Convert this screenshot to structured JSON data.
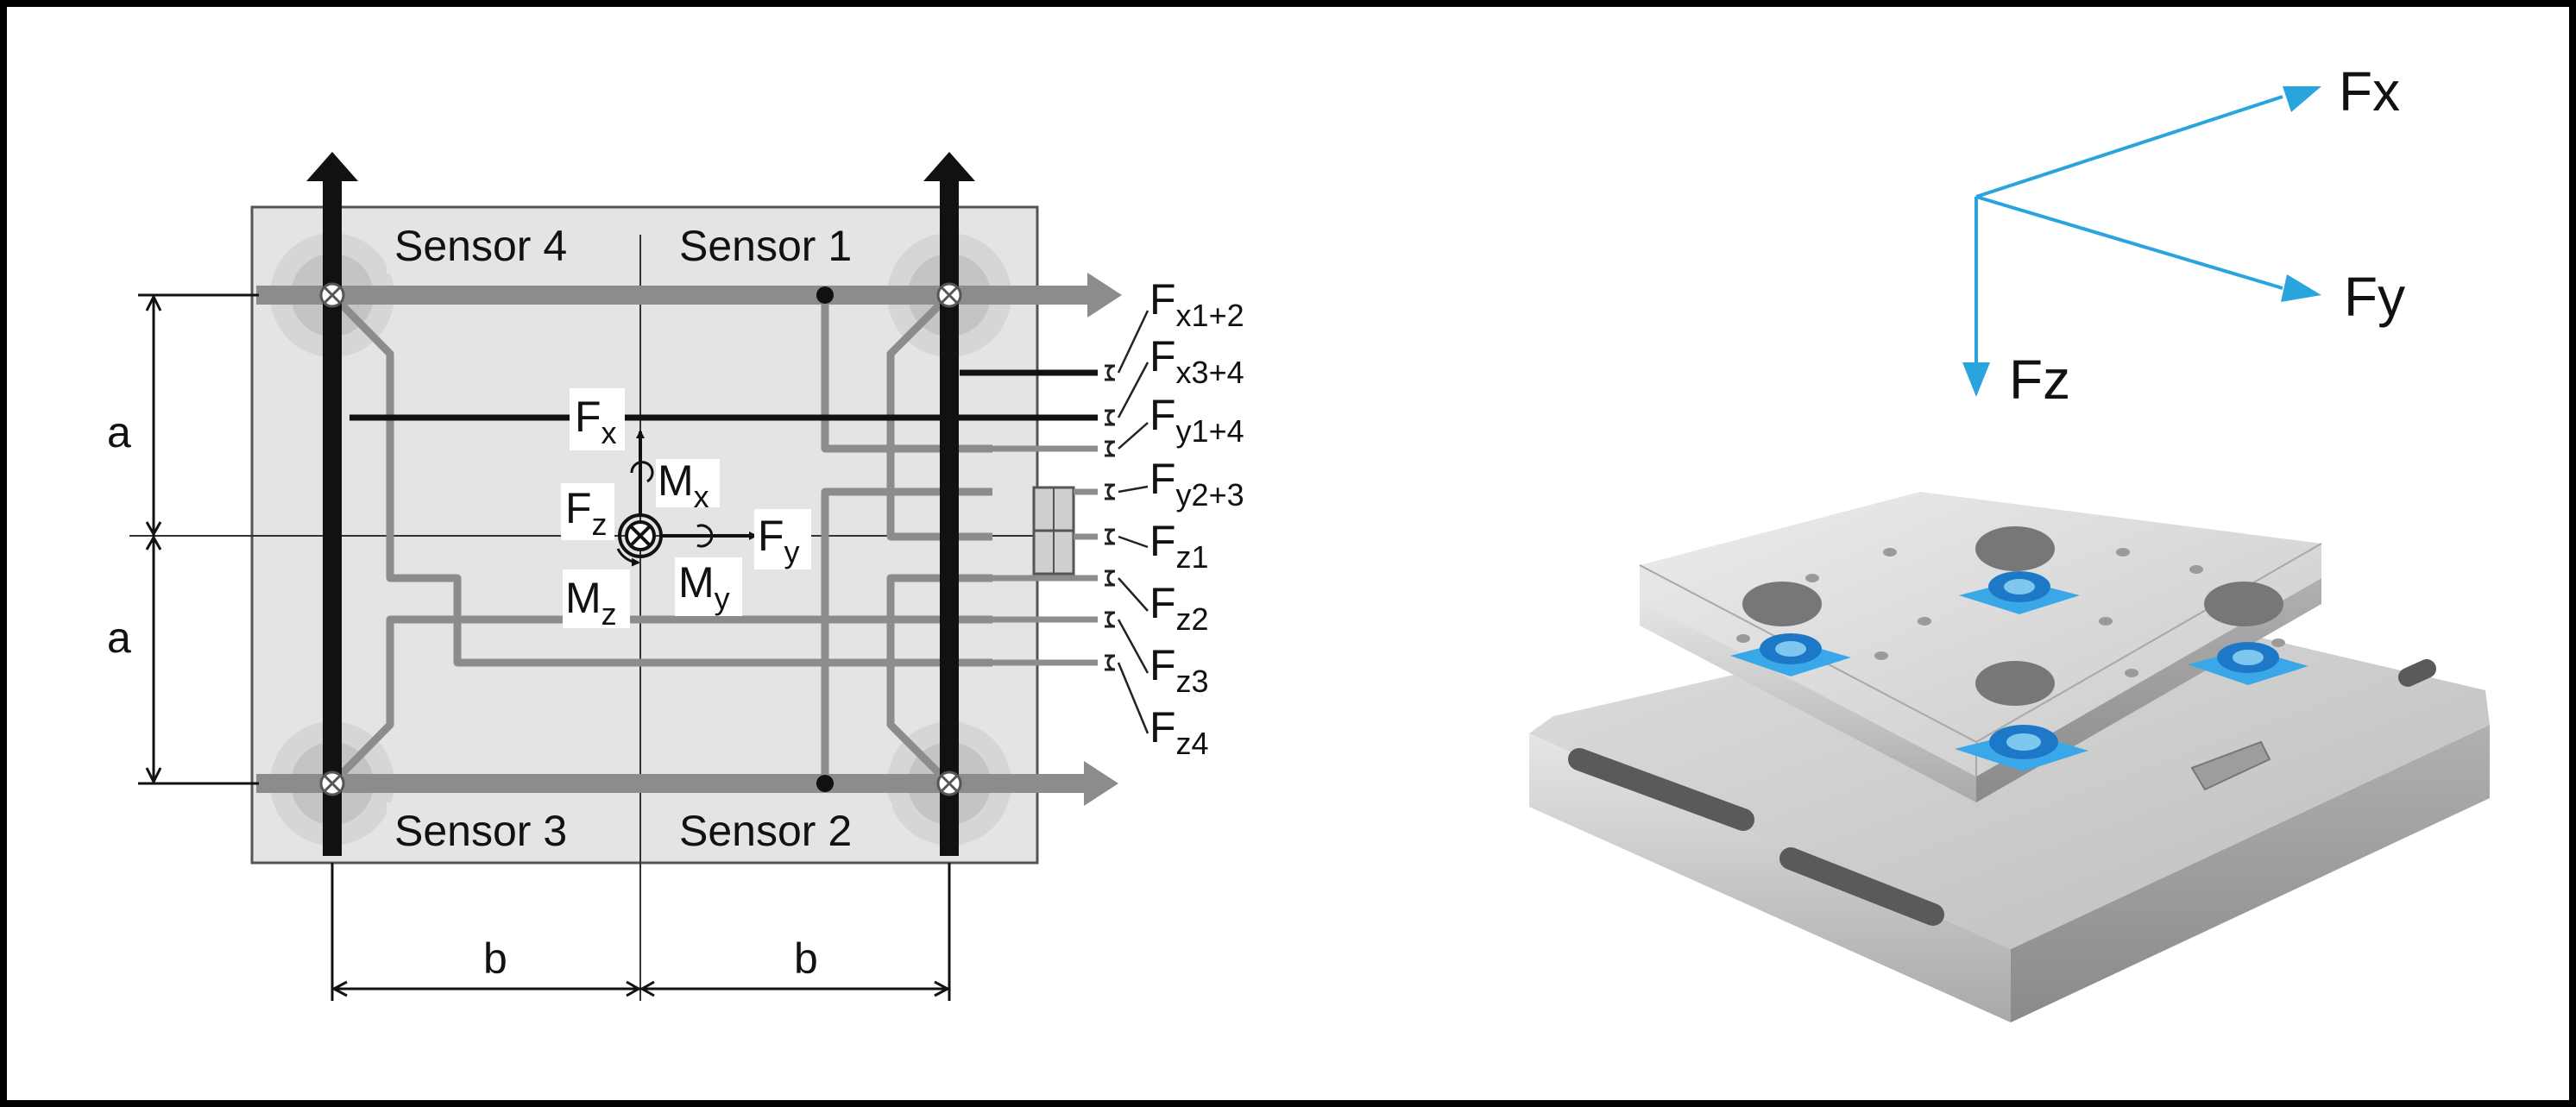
{
  "sensors": {
    "s1": "Sensor 1",
    "s2": "Sensor 2",
    "s3": "Sensor 3",
    "s4": "Sensor 4"
  },
  "dimensions": {
    "a": "a",
    "b": "b"
  },
  "center": {
    "Fx": {
      "main": "F",
      "sub": "x"
    },
    "Fy": {
      "main": "F",
      "sub": "y"
    },
    "Fz": {
      "main": "F",
      "sub": "z"
    },
    "Mx": {
      "main": "M",
      "sub": "x"
    },
    "My": {
      "main": "M",
      "sub": "y"
    },
    "Mz": {
      "main": "M",
      "sub": "z"
    }
  },
  "outputs": [
    {
      "main": "F",
      "sub": "x1+2"
    },
    {
      "main": "F",
      "sub": "x3+4"
    },
    {
      "main": "F",
      "sub": "y1+4"
    },
    {
      "main": "F",
      "sub": "y2+3"
    },
    {
      "main": "F",
      "sub": "z1"
    },
    {
      "main": "F",
      "sub": "z2"
    },
    {
      "main": "F",
      "sub": "z3"
    },
    {
      "main": "F",
      "sub": "z4"
    }
  ],
  "axes3d": {
    "x": "Fx",
    "y": "Fy",
    "z": "Fz"
  },
  "colors": {
    "frame": "#000000",
    "plate": "#e4e4e4",
    "beam_dark": "#111111",
    "beam_gray": "#8c8c8c",
    "axis_blue": "#2aa4dc",
    "sensor_blue": "#1e90e0"
  }
}
